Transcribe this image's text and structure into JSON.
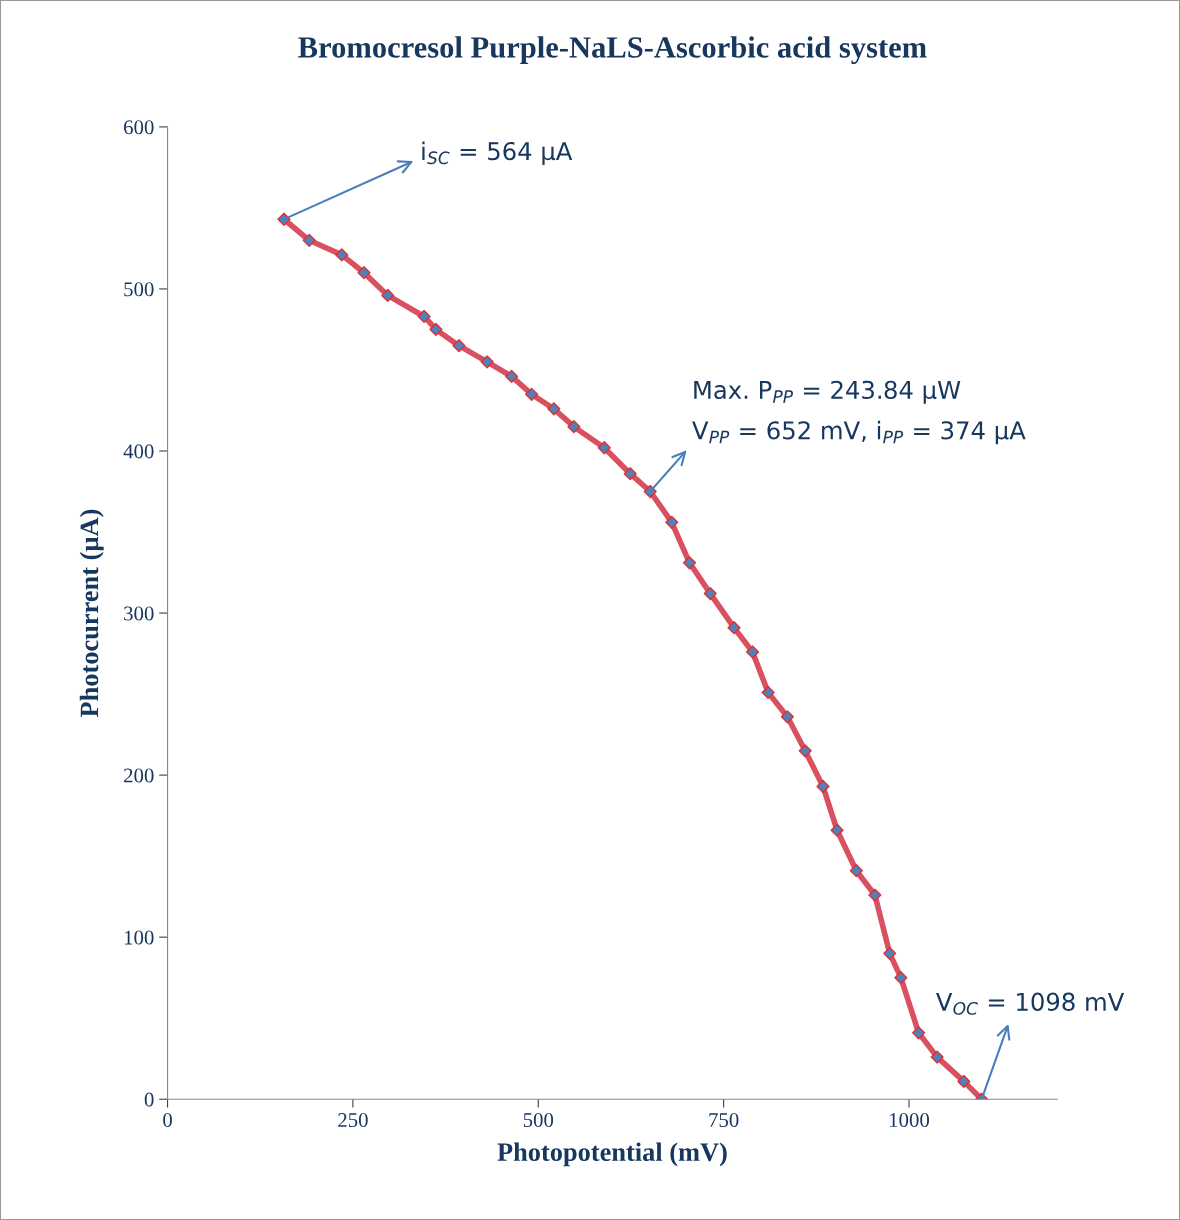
{
  "chart_data": {
    "type": "line",
    "title": "Bromocresol Purple-NaLS-Ascorbic acid system",
    "xlabel": "Photopotential (mV)",
    "ylabel": "Photocurrent (µA)",
    "x": [
      157,
      191,
      235,
      265,
      297,
      346,
      362,
      393,
      431,
      464,
      491,
      521,
      548,
      589,
      624,
      651,
      680,
      704,
      732,
      764,
      789,
      810,
      836,
      860,
      884,
      903,
      929,
      954,
      974,
      989,
      1013,
      1038,
      1074,
      1098
    ],
    "series": [
      {
        "color": "#d95060",
        "values": [
          543,
          530,
          521,
          510,
          496,
          483,
          475,
          465,
          455,
          446,
          435,
          426,
          415,
          402,
          386,
          375,
          356,
          331,
          312,
          291,
          276,
          251,
          236,
          215,
          193,
          166,
          141,
          126,
          90,
          75,
          41,
          26,
          11,
          0
        ],
        "colors": [
          "#4f81bd",
          "#4f81bd",
          "#4f81bd",
          "#4f81bd",
          "#4f81bd",
          "#4f81bd",
          "#4f81bd",
          "#4f81bd",
          "#4f81bd",
          "#4f81bd",
          "#4f81bd",
          "#4f81bd",
          "#4f81bd",
          "#4f81bd",
          "#4f81bd",
          "#4f81bd",
          "#4f81bd",
          "#4f81bd",
          "#4f81bd",
          "#4f81bd",
          "#4f81bd",
          "#4f81bd",
          "#4f81bd",
          "#4f81bd",
          "#4f81bd",
          "#4f81bd",
          "#4f81bd",
          "#4f81bd",
          "#4f81bd",
          "#4f81bd",
          "#4f81bd",
          "#4f81bd",
          "#4f81bd",
          "#4f81bd"
        ]
      }
    ],
    "marker": "diamond",
    "line_style": "solid",
    "xlim": [
      0,
      1200
    ],
    "xticks": [
      0,
      250,
      500,
      750,
      1000
    ],
    "ylim": [
      0,
      600
    ],
    "yticks": [
      0,
      100,
      200,
      300,
      400,
      500,
      600
    ],
    "grid": false,
    "annotations": [
      {
        "text": "i$_{SC}$ = 564 µA",
        "x": 157,
        "y": 543
      },
      "Max. P$_{PP}$ = 243.84 µW",
      {
        "text": "V$_{PP}$ = 652 mV, i$_{PP}$ = 374 µA",
        "x": 651,
        "y": 375
      },
      {
        "text": "V$_{OC}$ = 1098 mV",
        "x": 1098,
        "y": 0
      }
    ]
  }
}
